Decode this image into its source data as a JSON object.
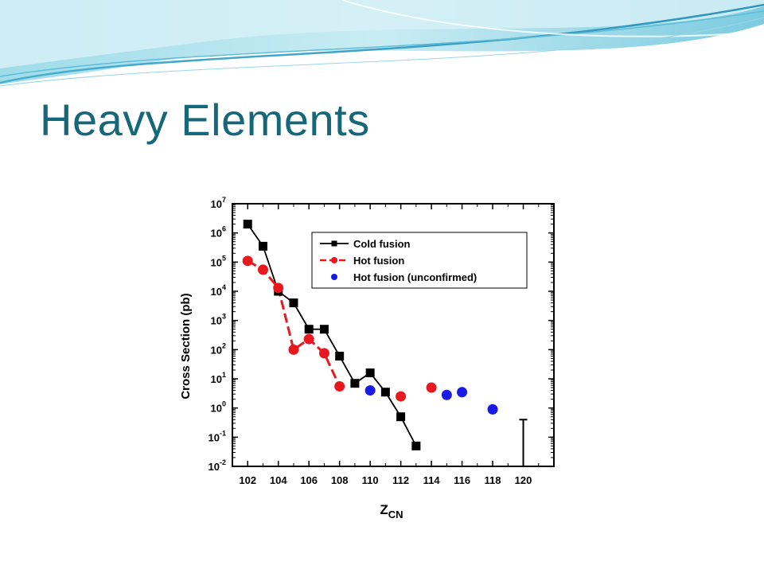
{
  "slide": {
    "title": "Heavy Elements"
  },
  "colors": {
    "title": "#17677a",
    "banner_light": "#d7f1f6",
    "banner_mid": "#8fd3e3",
    "banner_dark": "#3a9fc0",
    "cold_fusion": "#000000",
    "hot_fusion": "#e8181e",
    "unconfirmed": "#1a1ae6"
  },
  "chart_data": {
    "type": "scatter",
    "xlabel": "Z",
    "xlabel_sub": "CN",
    "ylabel": "Cross Section (pb)",
    "xlim": [
      101,
      122
    ],
    "ylim_log10": [
      -2,
      7
    ],
    "x_ticks": [
      "102",
      "104",
      "106",
      "108",
      "110",
      "112",
      "114",
      "116",
      "118",
      "120"
    ],
    "y_tick_exponents": [
      "7",
      "6",
      "5",
      "4",
      "3",
      "2",
      "1",
      "0",
      "-1",
      "-2"
    ],
    "y_tick_base": "10",
    "legend_position": "top-right",
    "series": [
      {
        "name": "Cold fusion",
        "style": "line-square",
        "color": "#000000",
        "points": [
          [
            102,
            2000000
          ],
          [
            103,
            350000
          ],
          [
            104,
            10000
          ],
          [
            105,
            4000
          ],
          [
            106,
            500
          ],
          [
            107,
            500
          ],
          [
            108,
            60
          ],
          [
            109,
            7
          ],
          [
            110,
            16
          ],
          [
            111,
            3.5
          ],
          [
            112,
            0.5
          ],
          [
            113,
            0.05
          ]
        ]
      },
      {
        "name": "Hot fusion",
        "style": "dashed-circle",
        "color": "#e8181e",
        "points": [
          [
            102,
            110000
          ],
          [
            103,
            55000
          ],
          [
            104,
            13000
          ],
          [
            105,
            100
          ],
          [
            106,
            230
          ],
          [
            107,
            75
          ],
          [
            108,
            5.5
          ]
        ],
        "extra_points": [
          [
            112,
            2.5
          ],
          [
            114,
            5
          ]
        ]
      },
      {
        "name": "Hot fusion (unconfirmed)",
        "style": "dot",
        "color": "#1a1ae6",
        "points": [
          [
            110,
            4
          ],
          [
            115,
            2.8
          ],
          [
            116,
            3.5
          ],
          [
            118,
            0.9
          ]
        ]
      }
    ],
    "annotations": [
      {
        "type": "upper-limit-bar",
        "x": 120,
        "from": 0.01,
        "to": 0.4
      }
    ]
  }
}
